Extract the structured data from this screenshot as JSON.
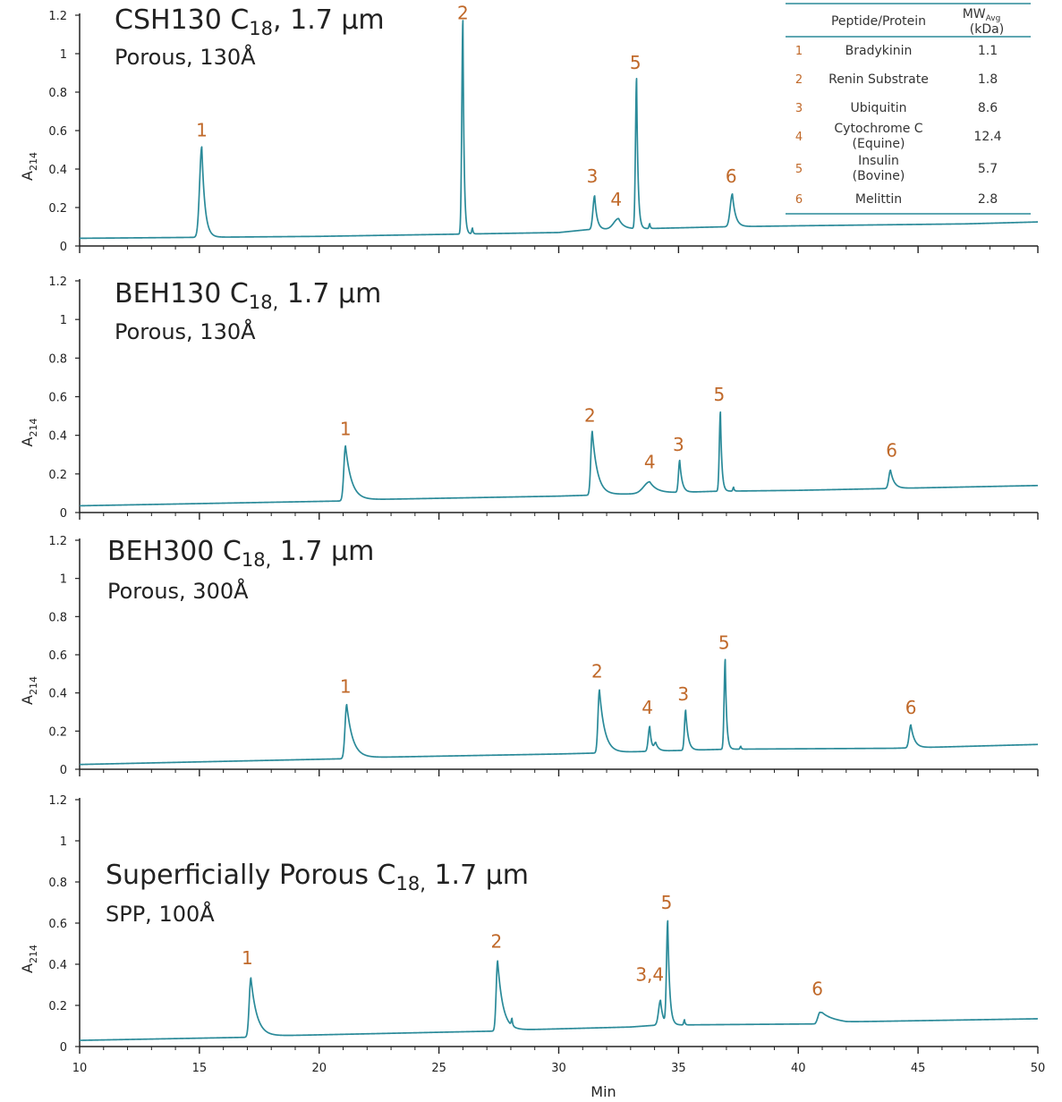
{
  "chart_data": [
    {
      "type": "line",
      "title": "CSH130 C18, 1.7 µm",
      "title_parts": {
        "main": "CSH130 C",
        "sub": "18",
        "rest": ", 1.7 µm"
      },
      "subtitle": "Porous, 130Å",
      "ylabel": "A214",
      "ylabel_parts": {
        "main": "A",
        "sub": "214"
      },
      "xlim": [
        10,
        50
      ],
      "ylim": [
        0,
        1.2
      ],
      "yticks": [
        "0",
        "0.2",
        "0.4",
        "0.6",
        "0.8",
        "1",
        "1.2"
      ],
      "series": [
        {
          "color": "#2a8a99",
          "baseline": [
            [
              10,
              0.04
            ],
            [
              20,
              0.05
            ],
            [
              30,
              0.07
            ],
            [
              31.2,
              0.085
            ],
            [
              33.5,
              0.09
            ],
            [
              37.0,
              0.1
            ],
            [
              40,
              0.105
            ],
            [
              47,
              0.115
            ],
            [
              50,
              0.125
            ]
          ],
          "peaks": [
            {
              "x": 15.1,
              "h": 0.47,
              "w": 0.09,
              "tail": 0.13
            },
            {
              "x": 26.0,
              "h": 1.11,
              "w": 0.045,
              "tail": 0.05
            },
            {
              "x": 26.4,
              "h": 0.03,
              "w": 0.03,
              "tail": 0.03
            },
            {
              "x": 31.5,
              "h": 0.175,
              "w": 0.07,
              "tail": 0.1
            },
            {
              "x": 32.5,
              "h": 0.055,
              "w": 0.2,
              "tail": 0.2
            },
            {
              "x": 33.25,
              "h": 0.78,
              "w": 0.045,
              "tail": 0.06
            },
            {
              "x": 33.8,
              "h": 0.025,
              "w": 0.03,
              "tail": 0.03
            },
            {
              "x": 37.25,
              "h": 0.17,
              "w": 0.09,
              "tail": 0.13
            }
          ]
        }
      ],
      "peak_labels": [
        {
          "text": "1",
          "x": 15.1,
          "y": 0.57
        },
        {
          "text": "2",
          "x": 26.0,
          "y": 1.18
        },
        {
          "text": "3",
          "x": 31.4,
          "y": 0.33
        },
        {
          "text": "4",
          "x": 32.4,
          "y": 0.21
        },
        {
          "text": "5",
          "x": 33.2,
          "y": 0.92
        },
        {
          "text": "6",
          "x": 37.2,
          "y": 0.33
        }
      ]
    },
    {
      "type": "line",
      "title": "BEH130 C18, 1.7 µm",
      "title_parts": {
        "main": "BEH130 C",
        "sub": "18,",
        "rest": " 1.7 µm"
      },
      "subtitle": "Porous, 130Å",
      "ylabel": "A214",
      "ylabel_parts": {
        "main": "A",
        "sub": "214"
      },
      "xlim": [
        10,
        50
      ],
      "ylim": [
        0,
        1.2
      ],
      "yticks": [
        "0",
        "0.2",
        "0.4",
        "0.6",
        "0.8",
        "1",
        "1.2"
      ],
      "series": [
        {
          "color": "#2a8a99",
          "baseline": [
            [
              10,
              0.035
            ],
            [
              21.0,
              0.06
            ],
            [
              21.1,
              0.065
            ],
            [
              30,
              0.085
            ],
            [
              31.3,
              0.09
            ],
            [
              34,
              0.1
            ],
            [
              36.5,
              0.11
            ],
            [
              40,
              0.115
            ],
            [
              50,
              0.14
            ]
          ],
          "peaks": [
            {
              "x": 21.1,
              "h": 0.28,
              "w": 0.07,
              "tail": 0.25
            },
            {
              "x": 31.4,
              "h": 0.33,
              "w": 0.06,
              "tail": 0.22
            },
            {
              "x": 33.8,
              "h": 0.06,
              "w": 0.25,
              "tail": 0.3
            },
            {
              "x": 35.05,
              "h": 0.165,
              "w": 0.05,
              "tail": 0.1
            },
            {
              "x": 36.75,
              "h": 0.41,
              "w": 0.045,
              "tail": 0.06
            },
            {
              "x": 37.3,
              "h": 0.02,
              "w": 0.03,
              "tail": 0.03
            },
            {
              "x": 43.85,
              "h": 0.095,
              "w": 0.07,
              "tail": 0.15
            }
          ]
        }
      ],
      "peak_labels": [
        {
          "text": "1",
          "x": 21.1,
          "y": 0.4
        },
        {
          "text": "2",
          "x": 31.3,
          "y": 0.47
        },
        {
          "text": "4",
          "x": 33.8,
          "y": 0.23
        },
        {
          "text": "3",
          "x": 35.0,
          "y": 0.32
        },
        {
          "text": "5",
          "x": 36.7,
          "y": 0.58
        },
        {
          "text": "6",
          "x": 43.9,
          "y": 0.29
        }
      ]
    },
    {
      "type": "line",
      "title": "BEH300 C18, 1.7 µm",
      "title_parts": {
        "main": "BEH300 C",
        "sub": "18,",
        "rest": " 1.7 µm"
      },
      "subtitle": "Porous, 300Å",
      "ylabel": "A214",
      "ylabel_parts": {
        "main": "A",
        "sub": "214"
      },
      "xlim": [
        10,
        50
      ],
      "ylim": [
        0,
        1.2
      ],
      "yticks": [
        "0",
        "0.2",
        "0.4",
        "0.6",
        "0.8",
        "1",
        "1.2"
      ],
      "series": [
        {
          "color": "#2a8a99",
          "baseline": [
            [
              10,
              0.025
            ],
            [
              21.0,
              0.055
            ],
            [
              21.2,
              0.06
            ],
            [
              30,
              0.08
            ],
            [
              31.6,
              0.085
            ],
            [
              34,
              0.095
            ],
            [
              37,
              0.105
            ],
            [
              44,
              0.11
            ],
            [
              50,
              0.13
            ]
          ],
          "peaks": [
            {
              "x": 21.15,
              "h": 0.28,
              "w": 0.07,
              "tail": 0.25
            },
            {
              "x": 31.7,
              "h": 0.33,
              "w": 0.06,
              "tail": 0.22
            },
            {
              "x": 33.8,
              "h": 0.13,
              "w": 0.06,
              "tail": 0.08
            },
            {
              "x": 34.05,
              "h": 0.04,
              "w": 0.06,
              "tail": 0.12
            },
            {
              "x": 35.3,
              "h": 0.21,
              "w": 0.05,
              "tail": 0.1
            },
            {
              "x": 36.95,
              "h": 0.47,
              "w": 0.045,
              "tail": 0.06
            },
            {
              "x": 37.6,
              "h": 0.015,
              "w": 0.03,
              "tail": 0.03
            },
            {
              "x": 44.7,
              "h": 0.12,
              "w": 0.07,
              "tail": 0.15
            }
          ]
        }
      ],
      "peak_labels": [
        {
          "text": "1",
          "x": 21.1,
          "y": 0.4
        },
        {
          "text": "2",
          "x": 31.6,
          "y": 0.48
        },
        {
          "text": "4",
          "x": 33.7,
          "y": 0.29
        },
        {
          "text": "3",
          "x": 35.2,
          "y": 0.36
        },
        {
          "text": "5",
          "x": 36.9,
          "y": 0.63
        },
        {
          "text": "6",
          "x": 44.7,
          "y": 0.29
        }
      ]
    },
    {
      "type": "line",
      "title": "Superficially Porous C18, 1.7 µm",
      "title_parts": {
        "main": "Superficially Porous C",
        "sub": "18,",
        "rest": " 1.7 µm"
      },
      "subtitle": "SPP, 100Å",
      "ylabel": "A214",
      "ylabel_parts": {
        "main": "A",
        "sub": "214"
      },
      "xlabel": "Min",
      "xlim": [
        10,
        50
      ],
      "ylim": [
        0,
        1.2
      ],
      "yticks": [
        "0",
        "0.2",
        "0.4",
        "0.6",
        "0.8",
        "1",
        "1.2"
      ],
      "xticks": [
        "10",
        "15",
        "20",
        "25",
        "30",
        "35",
        "40",
        "45",
        "50"
      ],
      "series": [
        {
          "color": "#2a8a99",
          "baseline": [
            [
              10,
              0.03
            ],
            [
              17.0,
              0.045
            ],
            [
              17.2,
              0.05
            ],
            [
              27.3,
              0.075
            ],
            [
              28,
              0.08
            ],
            [
              33,
              0.095
            ],
            [
              34.2,
              0.105
            ],
            [
              35,
              0.105
            ],
            [
              40.7,
              0.11
            ],
            [
              41.0,
              0.135
            ],
            [
              42,
              0.12
            ],
            [
              50,
              0.135
            ]
          ],
          "peaks": [
            {
              "x": 17.15,
              "h": 0.285,
              "w": 0.07,
              "tail": 0.25
            },
            {
              "x": 27.45,
              "h": 0.34,
              "w": 0.06,
              "tail": 0.22
            },
            {
              "x": 28.05,
              "h": 0.035,
              "w": 0.03,
              "tail": 0.03
            },
            {
              "x": 34.25,
              "h": 0.12,
              "w": 0.08,
              "tail": 0.1
            },
            {
              "x": 34.55,
              "h": 0.5,
              "w": 0.05,
              "tail": 0.08
            },
            {
              "x": 35.25,
              "h": 0.025,
              "w": 0.03,
              "tail": 0.03
            },
            {
              "x": 40.9,
              "h": 0.04,
              "w": 0.08,
              "tail": 0.35
            }
          ]
        }
      ],
      "peak_labels": [
        {
          "text": "1",
          "x": 17.0,
          "y": 0.4
        },
        {
          "text": "2",
          "x": 27.4,
          "y": 0.48
        },
        {
          "text": "3,4",
          "x": 33.8,
          "y": 0.32
        },
        {
          "text": "5",
          "x": 34.5,
          "y": 0.67
        },
        {
          "text": "6",
          "x": 40.8,
          "y": 0.25
        }
      ]
    }
  ],
  "legend_table": {
    "header": {
      "col1": "Peptide/Protein",
      "col2_main": "MW",
      "col2_sub": "Avg",
      "col2_unit": "(kDa)"
    },
    "rows": [
      {
        "num": "1",
        "name": [
          "Bradykinin"
        ],
        "mw": "1.1"
      },
      {
        "num": "2",
        "name": [
          "Renin Substrate"
        ],
        "mw": "1.8"
      },
      {
        "num": "3",
        "name": [
          "Ubiquitin"
        ],
        "mw": "8.6"
      },
      {
        "num": "4",
        "name": [
          "Cytochrome C",
          "(Equine)"
        ],
        "mw": "12.4"
      },
      {
        "num": "5",
        "name": [
          "Insulin",
          "(Bovine)"
        ],
        "mw": "5.7"
      },
      {
        "num": "6",
        "name": [
          "Melittin"
        ],
        "mw": "2.8"
      }
    ]
  },
  "colors": {
    "trace": "#2a8a99",
    "peak_label": "#c0692a",
    "table_rule": "#2a8a99",
    "axis": "#222222"
  }
}
